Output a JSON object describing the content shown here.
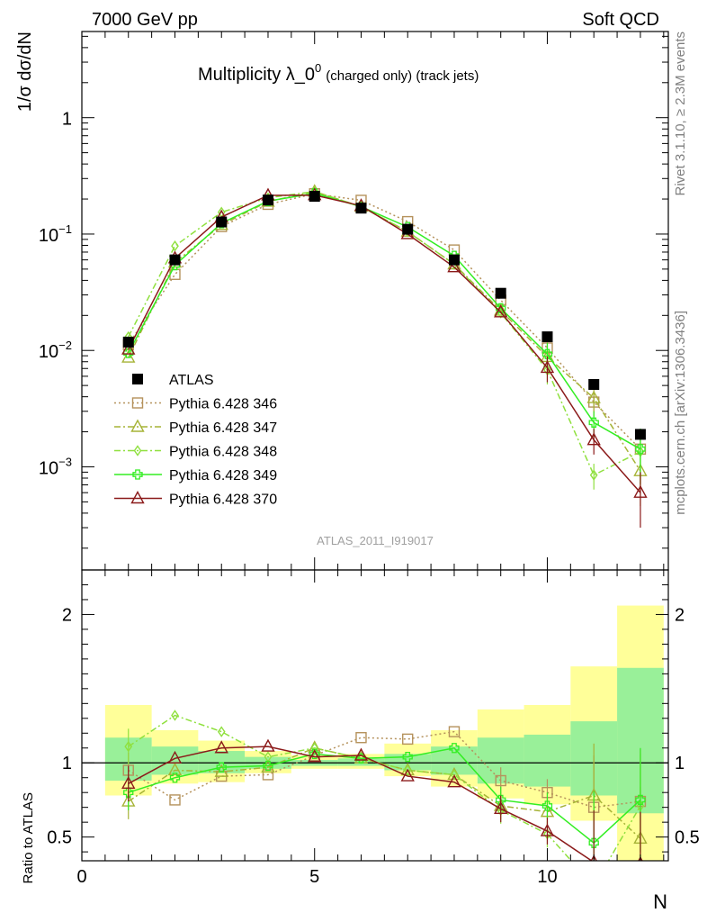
{
  "header": {
    "left": "7000 GeV pp",
    "right": "Soft QCD"
  },
  "plot_title": {
    "main": "Multiplicity λ_0",
    "sup": "0",
    "small": "(charged only) (track jets)"
  },
  "side_labels": {
    "rivet": "Rivet 3.1.10, ≥ 2.3M events",
    "mcplots": "mcplots.cern.ch [arXiv:1306.3436]"
  },
  "analysis_tag": "ATLAS_2011_I919017",
  "chart_data": [
    {
      "type": "line",
      "panel": "main",
      "ylabel": "1/σ dσ/dN",
      "yscale": "log",
      "ylim": [
        0.00013,
        5.5
      ],
      "xlim": [
        0,
        12.6
      ],
      "grid": false,
      "legend_position": "left-middle",
      "y_ticks": [
        {
          "v": 0.001,
          "base": "10",
          "exp": "−3"
        },
        {
          "v": 0.01,
          "base": "10",
          "exp": "−2"
        },
        {
          "v": 0.1,
          "base": "10",
          "exp": "−1"
        },
        {
          "v": 1,
          "base": "1",
          "exp": ""
        }
      ],
      "data": {
        "x": [
          1,
          2,
          3,
          4,
          5,
          6,
          7,
          8,
          9,
          10,
          11,
          12
        ],
        "name": "ATLAS",
        "values": [
          0.0118,
          0.06,
          0.127,
          0.196,
          0.211,
          0.167,
          0.11,
          0.06,
          0.031,
          0.0131,
          0.0051,
          0.0019
        ]
      },
      "series": [
        {
          "name": "Pythia 6.428 346",
          "color": "#b5925c",
          "dash": "2,3",
          "marker": "square",
          "values": [
            0.0112,
            0.045,
            0.116,
            0.18,
            0.222,
            0.195,
            0.128,
            0.073,
            0.027,
            0.0105,
            0.0036,
            0.00142
          ]
        },
        {
          "name": "Pythia 6.428 347",
          "color": "#a6b336",
          "dash": "7,3,2,3",
          "marker": "triangle",
          "values": [
            0.0087,
            0.057,
            0.12,
            0.19,
            0.232,
            0.172,
            0.105,
            0.055,
            0.022,
            0.0088,
            0.0039,
            0.00092
          ]
        },
        {
          "name": "Pythia 6.428 348",
          "color": "#8fe03e",
          "dash": "7,3,2,3",
          "marker": "diamond",
          "values": [
            0.0131,
            0.079,
            0.154,
            0.205,
            0.232,
            0.172,
            0.105,
            0.055,
            0.021,
            0.0068,
            0.00085,
            0.00135
          ]
        },
        {
          "name": "Pythia 6.428 349",
          "color": "#33ee22",
          "dash": "",
          "marker": "cross",
          "values": [
            0.0095,
            0.054,
            0.124,
            0.192,
            0.224,
            0.172,
            0.115,
            0.065,
            0.023,
            0.0093,
            0.0024,
            0.00142
          ]
        },
        {
          "name": "Pythia 6.428 370",
          "color": "#8b1a1a",
          "dash": "",
          "marker": "triangle",
          "values": [
            0.0102,
            0.062,
            0.14,
            0.215,
            0.216,
            0.175,
            0.1,
            0.052,
            0.0213,
            0.0071,
            0.0017,
            0.0006
          ]
        }
      ]
    },
    {
      "type": "line",
      "panel": "ratio",
      "ylabel": "Ratio to ATLAS",
      "xlabel": "N",
      "ylim": [
        0.34,
        2.3
      ],
      "xlim": [
        0,
        12.6
      ],
      "x_ticks": [
        0,
        5,
        10
      ],
      "y_ticks": [
        0.5,
        1,
        2
      ],
      "reference": 1,
      "bands": {
        "x_edges": [
          0.5,
          1.5,
          2.5,
          3.5,
          4.5,
          5.5,
          6.5,
          7.5,
          8.5,
          9.5,
          10.5,
          11.5,
          12.5
        ],
        "yellow": [
          [
            0.78,
            1.39
          ],
          [
            0.86,
            1.22
          ],
          [
            0.87,
            1.15
          ],
          [
            0.93,
            1.08
          ],
          [
            0.96,
            1.05
          ],
          [
            0.96,
            1.06
          ],
          [
            0.91,
            1.13
          ],
          [
            0.84,
            1.22
          ],
          [
            0.76,
            1.36
          ],
          [
            0.72,
            1.39
          ],
          [
            0.61,
            1.65
          ],
          [
            0.22,
            2.06
          ]
        ],
        "green": [
          [
            0.88,
            1.17
          ],
          [
            0.92,
            1.11
          ],
          [
            0.93,
            1.08
          ],
          [
            0.96,
            1.04
          ],
          [
            0.98,
            1.02
          ],
          [
            0.98,
            1.03
          ],
          [
            0.95,
            1.06
          ],
          [
            0.92,
            1.11
          ],
          [
            0.86,
            1.17
          ],
          [
            0.84,
            1.19
          ],
          [
            0.78,
            1.28
          ],
          [
            0.66,
            1.64
          ]
        ]
      },
      "series": [
        {
          "name": "Pythia 6.428 346",
          "values": [
            0.95,
            0.75,
            0.91,
            0.92,
            1.05,
            1.17,
            1.16,
            1.21,
            0.88,
            0.8,
            0.7,
            0.74
          ]
        },
        {
          "name": "Pythia 6.428 347",
          "values": [
            0.74,
            0.95,
            0.94,
            0.97,
            1.1,
            1.03,
            0.95,
            0.92,
            0.71,
            0.67,
            0.78,
            0.49
          ]
        },
        {
          "name": "Pythia 6.428 348",
          "values": [
            1.11,
            1.32,
            1.21,
            1.04,
            1.1,
            1.03,
            0.95,
            0.92,
            0.68,
            0.52,
            0.17,
            0.71
          ]
        },
        {
          "name": "Pythia 6.428 349",
          "values": [
            0.8,
            0.9,
            0.97,
            0.98,
            1.06,
            1.03,
            1.04,
            1.1,
            0.75,
            0.71,
            0.46,
            0.75
          ]
        },
        {
          "name": "Pythia 6.428 370",
          "values": [
            0.86,
            1.03,
            1.1,
            1.11,
            1.04,
            1.05,
            0.91,
            0.87,
            0.69,
            0.54,
            0.33,
            0.32
          ]
        }
      ]
    }
  ]
}
